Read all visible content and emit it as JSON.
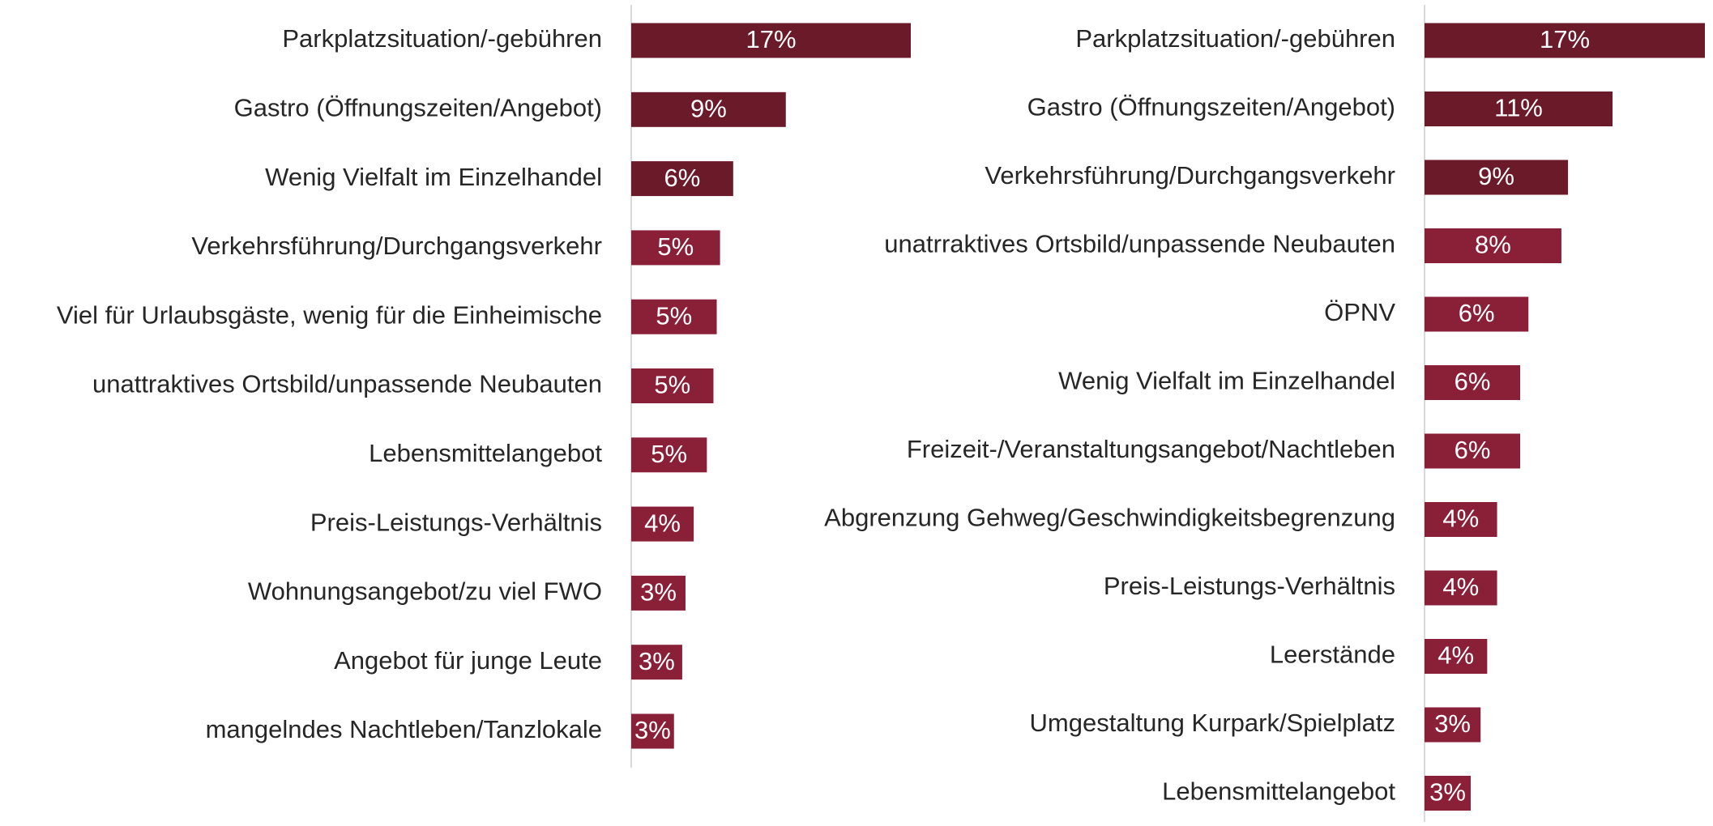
{
  "chart_data": [
    {
      "type": "bar",
      "orientation": "horizontal",
      "categories": [
        "Parkplatzsituation/-gebühren",
        "Gastro (Öffnungszeiten/Angebot)",
        "Wenig Vielfalt im Einzelhandel",
        "Verkehrsführung/Durchgangsverkehr",
        "Viel für Urlaubsgäste, wenig für die Einheimische",
        "unattraktives Ortsbild/unpassende Neubauten",
        "Lebensmittelangebot",
        "Preis-Leistungs-Verhältnis",
        "Wohnungsangebot/zu viel FWO",
        "Angebot für junge Leute",
        "mangelndes Nachtleben/Tanzlokale"
      ],
      "values": [
        17,
        9.4,
        6.2,
        5.4,
        5.2,
        5.0,
        4.6,
        3.8,
        3.3,
        3.1,
        2.6
      ],
      "value_labels": [
        "17%",
        "9%",
        "6%",
        "5%",
        "5%",
        "5%",
        "5%",
        "4%",
        "3%",
        "3%",
        "3%"
      ],
      "colors": [
        "#6b1a2a",
        "#6b1a2a",
        "#6b1a2a",
        "#8a1f38",
        "#8a1f38",
        "#8a1f38",
        "#8a1f38",
        "#8a1f38",
        "#8a1f38",
        "#8a1f38",
        "#8a1f38"
      ],
      "xlim": [
        0,
        17
      ]
    },
    {
      "type": "bar",
      "orientation": "horizontal",
      "categories": [
        "Parkplatzsituation/-gebühren",
        "Gastro (Öffnungszeiten/Angebot)",
        "Verkehrsführung/Durchgangsverkehr",
        "unatrraktives Ortsbild/unpassende Neubauten",
        "ÖPNV",
        "Wenig Vielfalt im Einzelhandel",
        "Freizeit-/Veranstaltungsangebot/Nachtleben",
        "Abgrenzung Gehweg/Geschwindigkeitsbegrenzung",
        "Preis-Leistungs-Verhältnis",
        "Leerstände",
        "Umgestaltung Kurpark/Spielplatz",
        "Lebensmittelangebot"
      ],
      "values": [
        17,
        11.4,
        8.7,
        8.3,
        6.3,
        5.8,
        5.8,
        4.4,
        4.4,
        3.8,
        3.4,
        2.8
      ],
      "value_labels": [
        "17%",
        "11%",
        "9%",
        "8%",
        "6%",
        "6%",
        "6%",
        "4%",
        "4%",
        "4%",
        "3%",
        "3%"
      ],
      "colors": [
        "#6b1a2a",
        "#6b1a2a",
        "#6b1a2a",
        "#8a1f38",
        "#8a1f38",
        "#8a1f38",
        "#8a1f38",
        "#8a1f38",
        "#8a1f38",
        "#8a1f38",
        "#8a1f38",
        "#8a1f38"
      ],
      "xlim": [
        0,
        17
      ]
    }
  ]
}
